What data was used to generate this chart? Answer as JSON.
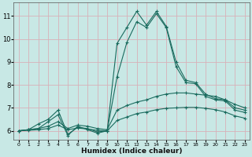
{
  "xlabel": "Humidex (Indice chaleur)",
  "ylabel": "",
  "xlim": [
    -0.5,
    23.5
  ],
  "ylim": [
    5.6,
    11.6
  ],
  "yticks": [
    6,
    7,
    8,
    9,
    10,
    11
  ],
  "xticks": [
    0,
    1,
    2,
    3,
    4,
    5,
    6,
    7,
    8,
    9,
    10,
    11,
    12,
    13,
    14,
    15,
    16,
    17,
    18,
    19,
    20,
    21,
    22,
    23
  ],
  "bg_color": "#c8e8e5",
  "grid_color": "#d8b0b8",
  "line_color": "#1a6b5e",
  "lines": [
    {
      "x": [
        0,
        1,
        2,
        3,
        4,
        5,
        6,
        7,
        8,
        9,
        10,
        11,
        12,
        13,
        14,
        15,
        16,
        17,
        18,
        19,
        20,
        21,
        22,
        23
      ],
      "y": [
        6.0,
        6.05,
        6.3,
        6.5,
        6.9,
        5.85,
        6.15,
        6.1,
        5.95,
        6.0,
        9.8,
        10.5,
        11.2,
        10.6,
        11.2,
        10.55,
        9.0,
        8.2,
        8.1,
        7.6,
        7.4,
        7.35,
        7.0,
        6.9
      ]
    },
    {
      "x": [
        0,
        1,
        2,
        3,
        4,
        5,
        6,
        7,
        8,
        9,
        10,
        11,
        12,
        13,
        14,
        15,
        16,
        17,
        18,
        19,
        20,
        21,
        22,
        23
      ],
      "y": [
        6.0,
        6.05,
        6.1,
        6.4,
        6.7,
        5.8,
        6.2,
        6.05,
        5.9,
        6.0,
        8.35,
        9.85,
        10.75,
        10.5,
        11.1,
        10.5,
        8.8,
        8.1,
        8.05,
        7.5,
        7.35,
        7.3,
        6.9,
        6.8
      ]
    },
    {
      "x": [
        0,
        1,
        2,
        3,
        4,
        5,
        6,
        7,
        8,
        9,
        10,
        11,
        12,
        13,
        14,
        15,
        16,
        17,
        18,
        19,
        20,
        21,
        22,
        23
      ],
      "y": [
        6.0,
        6.05,
        6.1,
        6.2,
        6.4,
        6.1,
        6.25,
        6.2,
        6.1,
        6.05,
        6.9,
        7.1,
        7.25,
        7.35,
        7.5,
        7.6,
        7.65,
        7.65,
        7.6,
        7.55,
        7.5,
        7.35,
        7.15,
        7.0
      ]
    },
    {
      "x": [
        0,
        1,
        2,
        3,
        4,
        5,
        6,
        7,
        8,
        9,
        10,
        11,
        12,
        13,
        14,
        15,
        16,
        17,
        18,
        19,
        20,
        21,
        22,
        23
      ],
      "y": [
        6.0,
        6.02,
        6.05,
        6.1,
        6.25,
        6.05,
        6.12,
        6.08,
        6.02,
        6.0,
        6.45,
        6.6,
        6.75,
        6.82,
        6.92,
        6.98,
        7.0,
        7.02,
        7.02,
        6.98,
        6.92,
        6.82,
        6.65,
        6.55
      ]
    }
  ]
}
